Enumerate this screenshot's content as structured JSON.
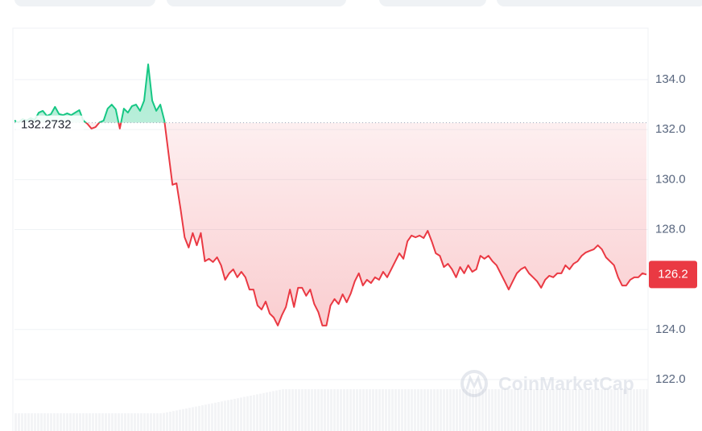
{
  "chart_data": {
    "type": "line",
    "baseline": 132.2732,
    "baseline_label": "132.2732",
    "current_price": 126.2,
    "current_label": "126.2",
    "watermark": "CoinMarketCap",
    "up_color": "#16c784",
    "down_color": "#ea3943",
    "ylim": [
      120,
      136
    ],
    "yticks": [
      {
        "value": 122,
        "label": "122.0"
      },
      {
        "value": 124,
        "label": "124.0"
      },
      {
        "value": 128,
        "label": "128.0"
      },
      {
        "value": 130,
        "label": "130.0"
      },
      {
        "value": 132,
        "label": "132.0"
      },
      {
        "value": 134,
        "label": "134.0"
      }
    ],
    "grid": true,
    "values": [
      132.36,
      132.29,
      132.42,
      132.36,
      132.46,
      132.39,
      132.68,
      132.75,
      132.55,
      132.62,
      132.91,
      132.62,
      132.58,
      132.65,
      132.58,
      132.68,
      132.78,
      132.36,
      132.23,
      132.04,
      132.1,
      132.29,
      132.36,
      132.84,
      133.0,
      132.81,
      132.04,
      132.84,
      132.68,
      132.94,
      133.0,
      132.75,
      133.16,
      134.61,
      133.16,
      132.75,
      133.0,
      132.36,
      131.07,
      129.79,
      129.85,
      128.82,
      127.69,
      127.28,
      127.86,
      127.37,
      127.86,
      126.73,
      126.83,
      126.7,
      126.89,
      126.57,
      125.99,
      126.25,
      126.41,
      126.09,
      126.31,
      126.09,
      125.6,
      125.6,
      124.96,
      124.8,
      125.12,
      124.64,
      124.48,
      124.16,
      124.57,
      124.9,
      125.6,
      124.9,
      125.67,
      125.67,
      125.35,
      125.6,
      125.02,
      124.7,
      124.16,
      124.16,
      124.96,
      125.22,
      125.02,
      125.41,
      125.09,
      125.44,
      125.93,
      126.25,
      125.76,
      125.99,
      125.86,
      126.09,
      125.99,
      126.31,
      126.09,
      126.41,
      126.73,
      127.05,
      126.83,
      127.53,
      127.76,
      127.69,
      127.76,
      127.66,
      127.95,
      127.53,
      127.05,
      126.95,
      126.5,
      126.63,
      126.41,
      126.09,
      126.5,
      126.25,
      126.57,
      126.31,
      126.41,
      126.95,
      126.83,
      126.95,
      126.73,
      126.57,
      126.25,
      125.93,
      125.6,
      125.93,
      126.25,
      126.41,
      126.5,
      126.25,
      126.09,
      125.93,
      125.67,
      125.99,
      126.15,
      126.09,
      126.25,
      126.25,
      126.57,
      126.41,
      126.63,
      126.73,
      126.95,
      127.08,
      127.15,
      127.21,
      127.37,
      127.21,
      126.89,
      126.73,
      126.57,
      126.09,
      125.76,
      125.76,
      125.99,
      126.09,
      126.09,
      126.25,
      126.2
    ]
  }
}
